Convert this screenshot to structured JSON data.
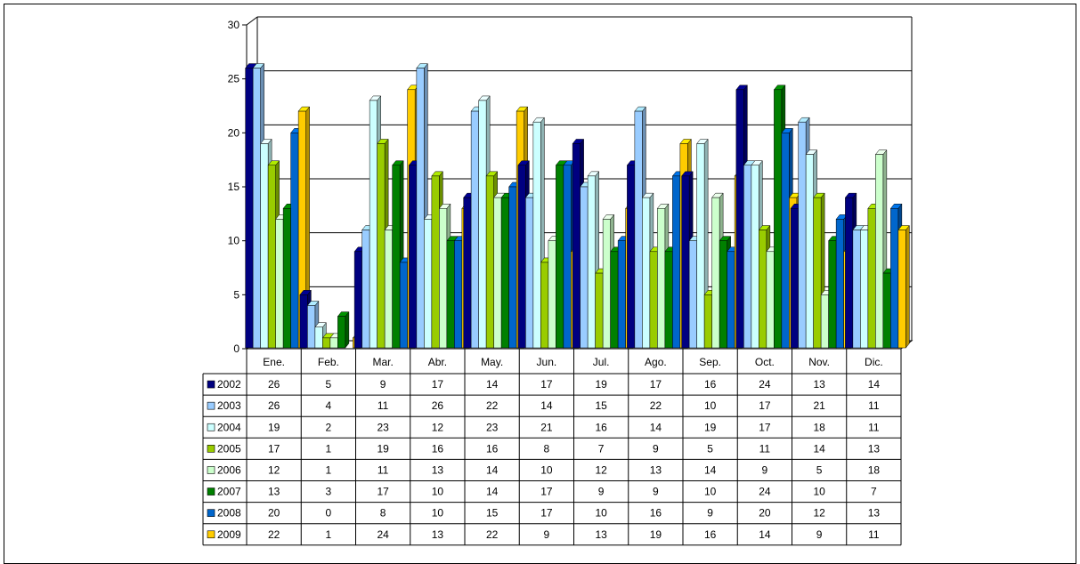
{
  "chart_data": {
    "type": "bar",
    "title": "",
    "xlabel": "",
    "ylabel": "",
    "ylim": [
      0,
      30
    ],
    "yticks": [
      0,
      5,
      10,
      15,
      20,
      25,
      30
    ],
    "grid": true,
    "legend": "left, inside data table",
    "categories": [
      "Ene.",
      "Feb.",
      "Mar.",
      "Abr.",
      "May.",
      "Jun.",
      "Jul.",
      "Ago.",
      "Sep.",
      "Oct.",
      "Nov.",
      "Dic."
    ],
    "series": [
      {
        "name": "2002",
        "color": "#000080",
        "values": [
          26,
          5,
          9,
          17,
          14,
          17,
          19,
          17,
          16,
          24,
          13,
          14
        ]
      },
      {
        "name": "2003",
        "color": "#99ccff",
        "values": [
          26,
          4,
          11,
          26,
          22,
          14,
          15,
          22,
          10,
          17,
          21,
          11
        ]
      },
      {
        "name": "2004",
        "color": "#ccffff",
        "values": [
          19,
          2,
          23,
          12,
          23,
          21,
          16,
          14,
          19,
          17,
          18,
          11
        ]
      },
      {
        "name": "2005",
        "color": "#99cc00",
        "values": [
          17,
          1,
          19,
          16,
          16,
          8,
          7,
          9,
          5,
          11,
          14,
          13
        ]
      },
      {
        "name": "2006",
        "color": "#ccffcc",
        "values": [
          12,
          1,
          11,
          13,
          14,
          10,
          12,
          13,
          14,
          9,
          5,
          18
        ]
      },
      {
        "name": "2007",
        "color": "#008000",
        "values": [
          13,
          3,
          17,
          10,
          14,
          17,
          9,
          9,
          10,
          24,
          10,
          7
        ]
      },
      {
        "name": "2008",
        "color": "#0066cc",
        "values": [
          20,
          0,
          8,
          10,
          15,
          17,
          10,
          16,
          9,
          20,
          12,
          13
        ]
      },
      {
        "name": "2009",
        "color": "#ffcc00",
        "values": [
          22,
          1,
          24,
          13,
          22,
          9,
          13,
          19,
          16,
          14,
          9,
          11
        ]
      }
    ]
  }
}
